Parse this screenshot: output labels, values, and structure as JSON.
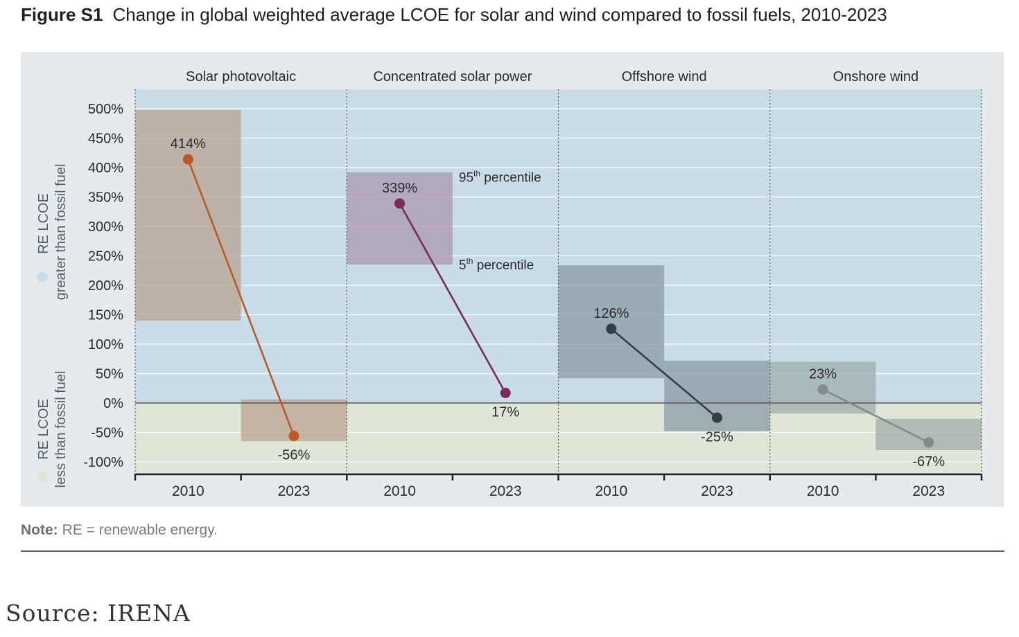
{
  "figure": {
    "label": "Figure S1",
    "title": "Change in global weighted average LCOE for solar and wind compared to fossil fuels, 2010-2023",
    "note_label": "Note:",
    "note_text": "RE = renewable energy.",
    "source": "Source: IRENA"
  },
  "legend": {
    "greater_line1": "RE LCOE",
    "greater_line2": "greater than fossil fuel",
    "less_line1": "RE LCOE",
    "less_line2": "less than fossil fuel"
  },
  "colors": {
    "above_zero_bg": "#c9dde8",
    "below_zero_bg": "#dfe6d8",
    "solar_pv": "#b85a28",
    "csp": "#7a2a5c",
    "offshore_wind": "#333d44",
    "onshore_wind": "#7f8c8a"
  },
  "chart_data": {
    "type": "line",
    "y_ticks": [
      500,
      450,
      400,
      350,
      300,
      250,
      200,
      150,
      100,
      50,
      0,
      -50,
      -100
    ],
    "y_tick_suffix": "%",
    "ylim": [
      -120,
      530
    ],
    "grid": true,
    "categories": [
      "2010",
      "2023"
    ],
    "panels": [
      {
        "name": "Solar photovoltaic",
        "values": [
          414,
          -56
        ],
        "labels": [
          "414%",
          "-56%"
        ],
        "percentile_range": [
          [
            140,
            498
          ],
          [
            -65,
            6
          ]
        ],
        "color": "#b85a28",
        "band_color": "#b9a18f"
      },
      {
        "name": "Concentrated solar power",
        "values": [
          339,
          17
        ],
        "labels": [
          "339%",
          "17%"
        ],
        "percentile_range": [
          [
            235,
            392
          ],
          null
        ],
        "color": "#7a2a5c",
        "band_color": "#a994ae",
        "annotations": {
          "p95": "95",
          "p5": "5",
          "suffix": "th",
          "word": "percentile"
        }
      },
      {
        "name": "Offshore wind",
        "values": [
          126,
          -25
        ],
        "labels": [
          "126%",
          "-25%"
        ],
        "percentile_range": [
          [
            42,
            234
          ],
          [
            -48,
            72
          ]
        ],
        "color": "#333d44",
        "band_color": "#8799a1"
      },
      {
        "name": "Onshore wind",
        "values": [
          23,
          -67
        ],
        "labels": [
          "23%",
          "-67%"
        ],
        "percentile_range": [
          [
            -18,
            70
          ],
          [
            -80,
            -27
          ]
        ],
        "color": "#7f8c8a",
        "band_color": "#9eaaa9"
      }
    ]
  }
}
